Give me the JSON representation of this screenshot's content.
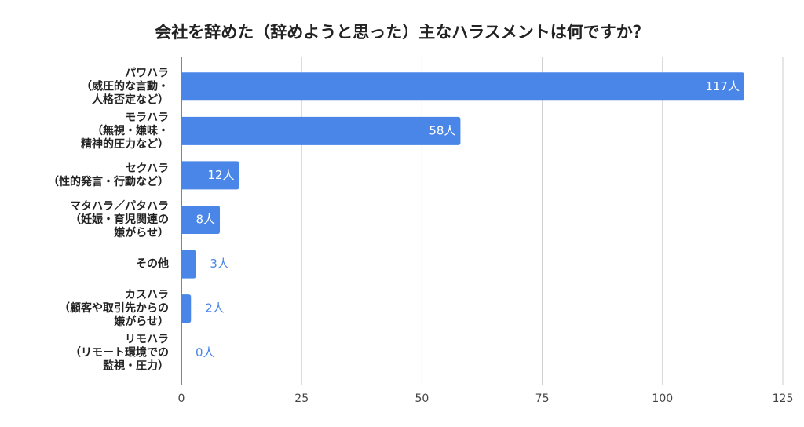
{
  "chart_data": {
    "type": "bar",
    "orientation": "horizontal",
    "title": "会社を辞めた（辞めようと思った）主なハラスメントは何ですか？",
    "categories": [
      [
        "パワハラ",
        "（威圧的な言動・",
        "人格否定など）"
      ],
      [
        "モラハラ",
        "（無視・嫌味・",
        "精神的圧力など）"
      ],
      [
        "セクハラ",
        "（性的発言・行動など）"
      ],
      [
        "マタハラ／パタハラ",
        "（妊娠・育児関連の",
        "嫌がらせ）"
      ],
      [
        "その他"
      ],
      [
        "カスハラ",
        "（顧客や取引先からの",
        "嫌がらせ）"
      ],
      [
        "リモハラ",
        "（リモート環境での",
        "監視・圧力）"
      ]
    ],
    "values": [
      117,
      58,
      12,
      8,
      3,
      2,
      0
    ],
    "value_labels": [
      "117人",
      "58人",
      "12人",
      "8人",
      "3人",
      "2人",
      "0人"
    ],
    "color": "#4a86e8",
    "xlim": [
      0,
      125
    ],
    "xticks": [
      0,
      25,
      50,
      75,
      100,
      125
    ],
    "grid": true
  }
}
